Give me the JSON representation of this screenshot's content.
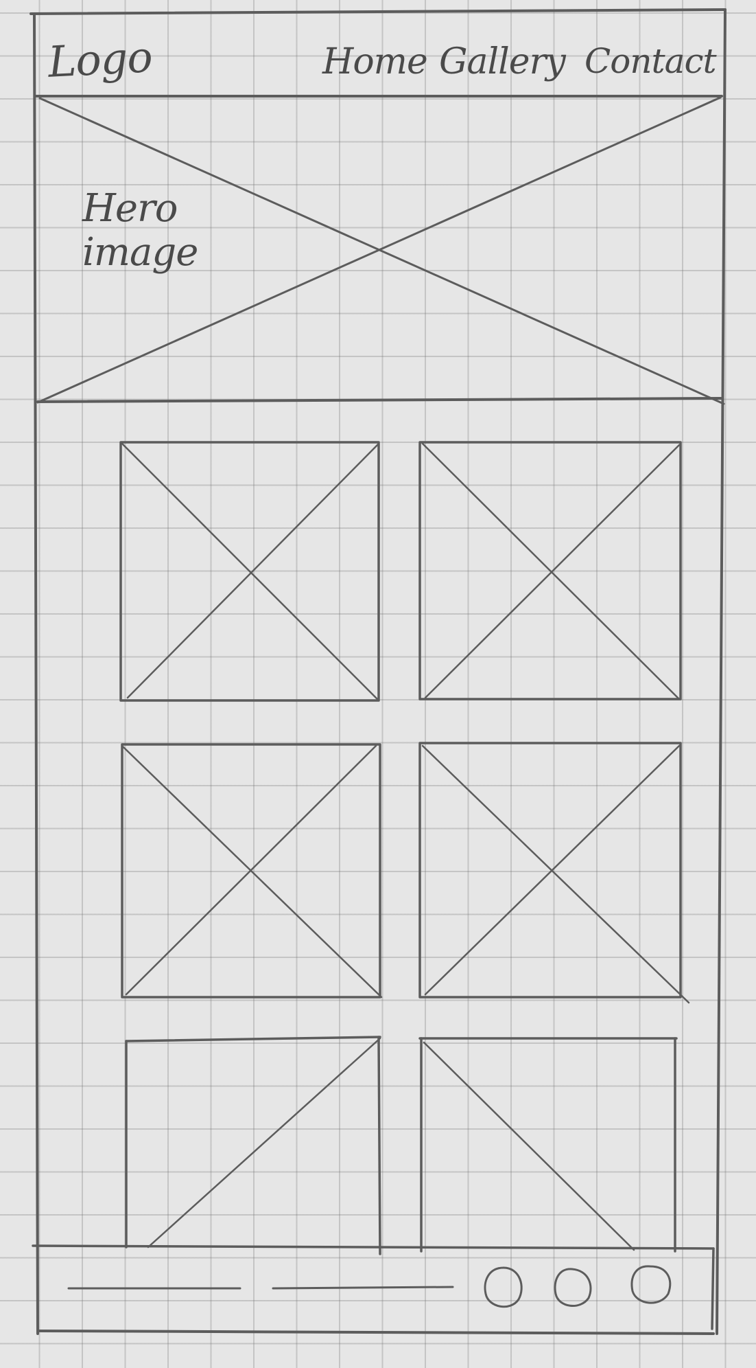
{
  "header": {
    "logo": "Logo",
    "nav": [
      "Home",
      "Gallery",
      "Contact"
    ]
  },
  "hero": {
    "label": "Hero image"
  },
  "gallery": {
    "tiles": 6,
    "columns": 2,
    "rows": 3
  },
  "footer": {
    "link_lines": 2,
    "social_icons": [
      "circle-icon",
      "circle-icon",
      "circle-icon"
    ]
  },
  "colors": {
    "paper": "#e6e6e6",
    "grid": "#9a9a9a",
    "pencil": "#5c5c5c"
  }
}
